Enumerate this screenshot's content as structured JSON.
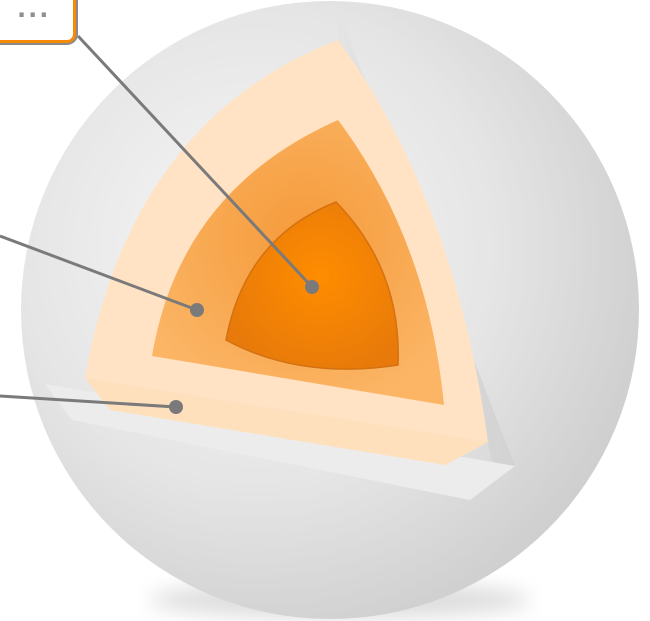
{
  "diagram": {
    "labels": [
      {
        "id": "core",
        "text": "..."
      },
      {
        "id": "mantle",
        "text": ""
      },
      {
        "id": "crust",
        "text": ""
      }
    ]
  },
  "colors": {
    "shell_outer": "#e6e6e6",
    "shell_inner": "#d6d6d6",
    "crust_layer": "#ffe3c4",
    "mantle_layer": "#fcb260",
    "core": "#f08a12",
    "label_border": "#f58a06",
    "leader_line": "#7a7a7a"
  }
}
